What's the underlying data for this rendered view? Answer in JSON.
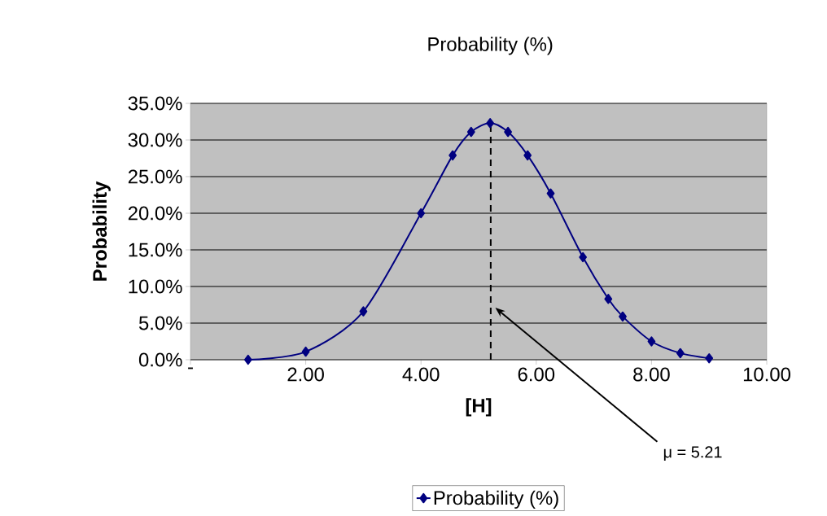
{
  "chart_data": {
    "type": "line",
    "title": "Probability (%)",
    "xlabel": "[H]",
    "ylabel": "Probability",
    "x": [
      1.0,
      2.0,
      3.0,
      4.0,
      4.55,
      4.87,
      5.2,
      5.51,
      5.85,
      6.25,
      6.81,
      7.25,
      7.5,
      8.0,
      8.5,
      9.0
    ],
    "series": [
      {
        "name": "Probability (%)",
        "color": "#000080",
        "values": [
          0,
          1.1,
          6.6,
          20.0,
          27.9,
          31.1,
          32.3,
          31.1,
          27.9,
          22.7,
          14.0,
          8.3,
          5.9,
          2.5,
          0.9,
          0.2
        ]
      }
    ],
    "xlim": [
      0,
      10
    ],
    "ylim": [
      0,
      35
    ],
    "xticks": [
      {
        "value": 0,
        "label": "-"
      },
      {
        "value": 2,
        "label": "2.00"
      },
      {
        "value": 4,
        "label": "4.00"
      },
      {
        "value": 6,
        "label": "6.00"
      },
      {
        "value": 8,
        "label": "8.00"
      },
      {
        "value": 10,
        "label": "10.00"
      }
    ],
    "yticks": [
      {
        "value": 0,
        "label": "0.0%"
      },
      {
        "value": 5,
        "label": "5.0%"
      },
      {
        "value": 10,
        "label": "10.0%"
      },
      {
        "value": 15,
        "label": "15.0%"
      },
      {
        "value": 20,
        "label": "20.0%"
      },
      {
        "value": 25,
        "label": "25.0%"
      },
      {
        "value": 30,
        "label": "30.0%"
      },
      {
        "value": 35,
        "label": "35.0%"
      }
    ],
    "grid": "y",
    "legend": "bottom",
    "marker": "diamond",
    "line_style": "solid",
    "ref_lines": [
      {
        "axis": "x",
        "value": 5.21,
        "label": "μ = 5.21",
        "line_style": "dashed",
        "color": "#000000"
      }
    ]
  }
}
